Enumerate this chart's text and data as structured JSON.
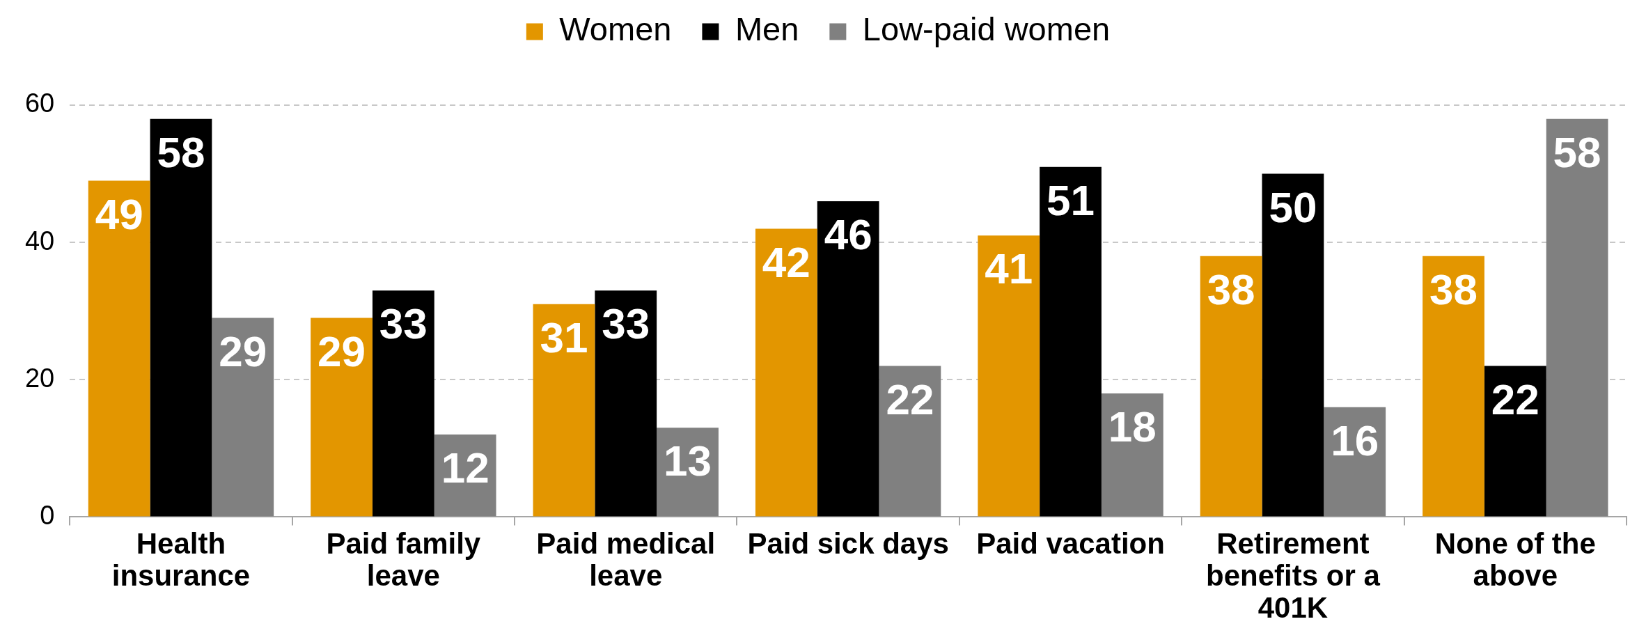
{
  "chart_data": {
    "type": "bar",
    "categories": [
      "Health insurance",
      "Paid family leave",
      "Paid medical leave",
      "Paid sick days",
      "Paid vacation",
      "Retirement benefits or a 401K",
      "None of the above"
    ],
    "series": [
      {
        "name": "Women",
        "color": "#e39600",
        "values": [
          49,
          29,
          31,
          42,
          41,
          38,
          38
        ]
      },
      {
        "name": "Men",
        "color": "#000000",
        "values": [
          58,
          33,
          33,
          46,
          51,
          50,
          22
        ]
      },
      {
        "name": "Low-paid women",
        "color": "#808080",
        "values": [
          29,
          12,
          13,
          22,
          18,
          16,
          58
        ]
      }
    ],
    "ylim": [
      0,
      60
    ],
    "yticks": [
      0,
      20,
      40,
      60
    ],
    "grid": "y",
    "legend": "top",
    "data_labels": true
  }
}
